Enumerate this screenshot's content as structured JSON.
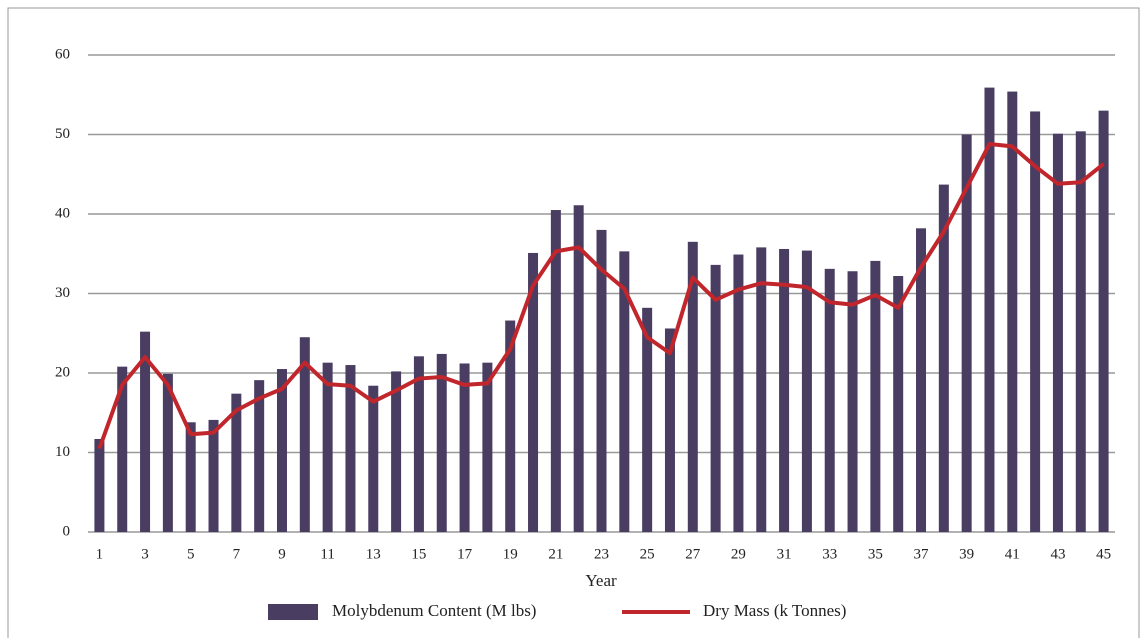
{
  "chart_data": {
    "type": "bar_line",
    "x_label": "Year",
    "categories": [
      1,
      null,
      3,
      null,
      5,
      null,
      7,
      null,
      9,
      null,
      11,
      null,
      13,
      null,
      15,
      null,
      17,
      null,
      19,
      null,
      21,
      null,
      23,
      null,
      25,
      null,
      27,
      null,
      29,
      null,
      31,
      null,
      33,
      null,
      35,
      null,
      37,
      null,
      39,
      null,
      41,
      null,
      43,
      null,
      45
    ],
    "series": [
      {
        "name": "Molybdenum Content (M lbs)",
        "type": "bar",
        "color": "#4a3d62",
        "values": [
          11.7,
          20.8,
          25.2,
          19.9,
          13.8,
          14.1,
          17.4,
          19.1,
          20.5,
          24.5,
          21.3,
          21.0,
          18.4,
          20.2,
          22.1,
          22.4,
          21.2,
          21.3,
          26.6,
          35.1,
          40.5,
          41.1,
          38.0,
          35.3,
          28.2,
          25.6,
          36.5,
          33.6,
          34.9,
          35.8,
          35.6,
          35.4,
          33.1,
          32.8,
          34.1,
          32.2,
          38.2,
          43.7,
          50.0,
          55.9,
          55.4,
          52.9,
          50.1,
          50.4,
          53.0
        ]
      },
      {
        "name": "Dry Mass (k Tonnes)",
        "type": "line",
        "color": "#c0262c",
        "values": [
          10.5,
          18.5,
          22.0,
          18.5,
          12.3,
          12.5,
          15.3,
          16.8,
          18.0,
          21.3,
          18.6,
          18.4,
          16.4,
          17.8,
          19.3,
          19.5,
          18.5,
          18.7,
          23.0,
          31.0,
          35.3,
          35.8,
          33.0,
          30.6,
          24.5,
          22.5,
          32.0,
          29.2,
          30.5,
          31.3,
          31.1,
          30.8,
          28.9,
          28.6,
          29.8,
          28.2,
          33.3,
          37.8,
          43.3,
          48.8,
          48.5,
          46.0,
          43.8,
          44.0,
          46.3
        ]
      }
    ],
    "ylim": [
      0,
      60
    ],
    "yticks": [
      0,
      10,
      20,
      30,
      40,
      50,
      60
    ],
    "grid": true,
    "legend": "bottom"
  }
}
